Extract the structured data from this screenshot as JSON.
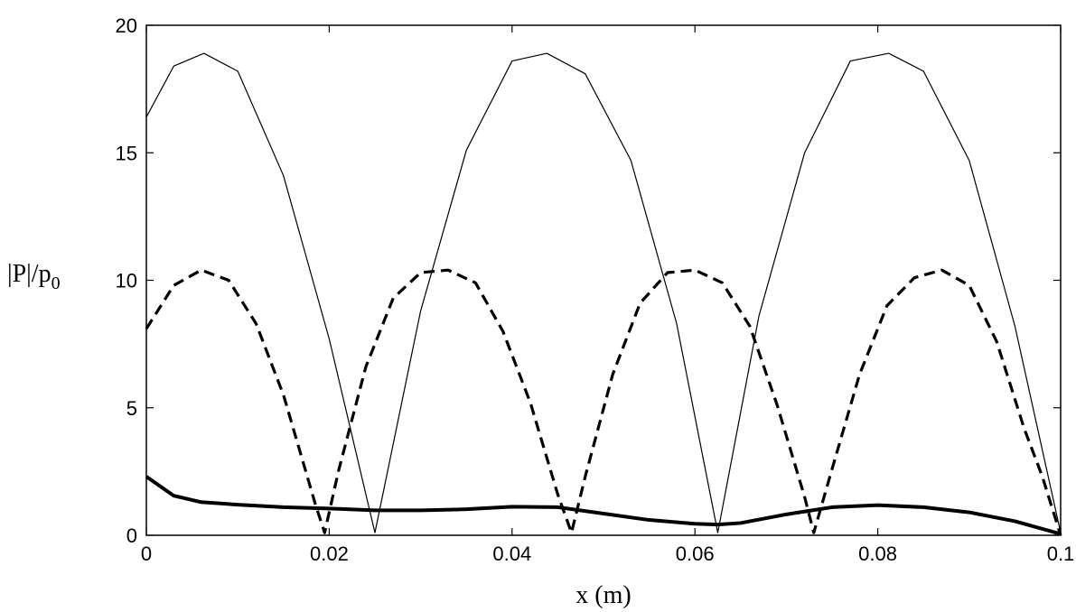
{
  "chart_data": {
    "type": "line",
    "title": "",
    "xlabel": "x (m)",
    "ylabel": {
      "main": "|P|/p",
      "subscript": "0"
    },
    "xlim": [
      0,
      0.1
    ],
    "ylim": [
      0,
      20
    ],
    "x_ticks": [
      0,
      0.02,
      0.04,
      0.06,
      0.08,
      0.1
    ],
    "x_tick_labels": [
      "0",
      "0.02",
      "0.04",
      "0.06",
      "0.08",
      "0.1"
    ],
    "y_ticks": [
      0,
      5,
      10,
      15,
      20
    ],
    "y_tick_labels": [
      "0",
      "5",
      "10",
      "15",
      "20"
    ],
    "grid": false,
    "legend": "none",
    "series": [
      {
        "style": "thin-solid",
        "color": "#000000",
        "x": [
          0,
          0.003,
          0.0063,
          0.01,
          0.015,
          0.02,
          0.025,
          0.03,
          0.035,
          0.04,
          0.0438,
          0.048,
          0.053,
          0.058,
          0.0625,
          0.067,
          0.072,
          0.077,
          0.0812,
          0.085,
          0.09,
          0.095,
          0.1
        ],
        "y": [
          16.4,
          18.4,
          18.9,
          18.2,
          14.1,
          7.7,
          0.1,
          8.8,
          15.1,
          18.6,
          18.9,
          18.1,
          14.7,
          8.3,
          0.1,
          8.6,
          15.0,
          18.6,
          18.9,
          18.2,
          14.7,
          8.2,
          0.1
        ]
      },
      {
        "style": "thick-dashed",
        "color": "#000000",
        "x": [
          0,
          0.003,
          0.006,
          0.009,
          0.012,
          0.015,
          0.0185,
          0.0195,
          0.021,
          0.024,
          0.027,
          0.03,
          0.033,
          0.036,
          0.039,
          0.042,
          0.045,
          0.0465,
          0.048,
          0.051,
          0.054,
          0.057,
          0.06,
          0.063,
          0.066,
          0.069,
          0.072,
          0.073,
          0.075,
          0.078,
          0.081,
          0.084,
          0.087,
          0.09,
          0.093,
          0.096,
          0.098,
          0.1
        ],
        "y": [
          8.1,
          9.8,
          10.4,
          10.0,
          8.3,
          5.5,
          1.2,
          0.1,
          2.5,
          6.6,
          9.3,
          10.3,
          10.4,
          9.9,
          8.0,
          5.2,
          1.6,
          0.1,
          2.3,
          6.3,
          9.1,
          10.3,
          10.4,
          9.9,
          8.2,
          5.1,
          1.5,
          0.1,
          2.6,
          6.3,
          9.0,
          10.1,
          10.4,
          9.8,
          7.6,
          4.2,
          2.3,
          0.0
        ]
      },
      {
        "style": "thick-solid",
        "color": "#000000",
        "x": [
          0,
          0.003,
          0.006,
          0.01,
          0.015,
          0.02,
          0.025,
          0.03,
          0.035,
          0.04,
          0.045,
          0.05,
          0.055,
          0.06,
          0.0625,
          0.065,
          0.07,
          0.075,
          0.08,
          0.085,
          0.09,
          0.095,
          0.1
        ],
        "y": [
          2.3,
          1.55,
          1.3,
          1.2,
          1.1,
          1.05,
          0.98,
          0.98,
          1.02,
          1.12,
          1.1,
          0.85,
          0.6,
          0.45,
          0.42,
          0.48,
          0.82,
          1.1,
          1.18,
          1.1,
          0.9,
          0.55,
          0.05
        ]
      }
    ]
  }
}
